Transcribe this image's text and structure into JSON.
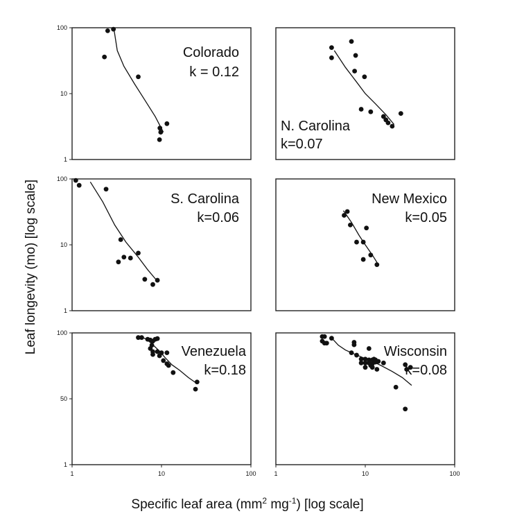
{
  "figure": {
    "ylabel": "Leaf longevity (mo) [log scale]",
    "xlabel_parts": [
      "Specific leaf area (mm",
      "2",
      " mg",
      "-1",
      ") [log scale]"
    ]
  },
  "chart_data": [
    {
      "type": "scatter",
      "title": "Colorado",
      "k_label": "k = 0.12",
      "x_scale": "log",
      "y_scale": "log",
      "xlim": [
        1,
        100
      ],
      "ylim": [
        1,
        100
      ],
      "x_ticks": [],
      "y_ticks": [
        "100",
        "10",
        "1"
      ],
      "points": [
        [
          2.5,
          90
        ],
        [
          2.9,
          95
        ],
        [
          2.3,
          36
        ],
        [
          5.5,
          18
        ],
        [
          9.6,
          3.0
        ],
        [
          9.8,
          2.6
        ],
        [
          9.5,
          2.0
        ],
        [
          11.5,
          3.5
        ]
      ],
      "fit": [
        [
          2.95,
          92
        ],
        [
          3.2,
          45
        ],
        [
          3.8,
          26
        ],
        [
          5,
          14
        ],
        [
          6.5,
          8
        ],
        [
          8.5,
          4.5
        ],
        [
          10.5,
          2.6
        ]
      ]
    },
    {
      "type": "scatter",
      "title": "N. Carolina",
      "k_label": "k=0.07",
      "x_scale": "log",
      "y_scale": "log",
      "xlim": [
        1,
        100
      ],
      "ylim": [
        1,
        100
      ],
      "x_ticks": [],
      "y_ticks": [],
      "points": [
        [
          4.2,
          50
        ],
        [
          4.2,
          35
        ],
        [
          7.0,
          62
        ],
        [
          7.8,
          38
        ],
        [
          7.6,
          22
        ],
        [
          9.8,
          18
        ],
        [
          9.0,
          5.8
        ],
        [
          11.5,
          5.3
        ],
        [
          16,
          4.5
        ],
        [
          17,
          4.0
        ],
        [
          18,
          3.6
        ],
        [
          20,
          3.2
        ],
        [
          25,
          5.0
        ]
      ],
      "fit": [
        [
          4.5,
          45
        ],
        [
          6,
          25
        ],
        [
          8,
          15
        ],
        [
          10,
          10
        ],
        [
          13,
          7
        ],
        [
          17,
          4.8
        ],
        [
          21,
          3.4
        ]
      ]
    },
    {
      "type": "scatter",
      "title": "S. Carolina",
      "k_label": "k=0.06",
      "x_scale": "log",
      "y_scale": "log",
      "xlim": [
        1,
        100
      ],
      "ylim": [
        1,
        100
      ],
      "x_ticks": [],
      "y_ticks": [
        "100",
        "10",
        "1"
      ],
      "points": [
        [
          1.1,
          95
        ],
        [
          1.2,
          80
        ],
        [
          2.4,
          70
        ],
        [
          3.5,
          12
        ],
        [
          3.3,
          5.5
        ],
        [
          3.8,
          6.5
        ],
        [
          4.5,
          6.3
        ],
        [
          5.5,
          7.5
        ],
        [
          6.5,
          3.0
        ],
        [
          8,
          2.5
        ],
        [
          9,
          2.9
        ]
      ],
      "fit": [
        [
          1.6,
          90
        ],
        [
          2.2,
          45
        ],
        [
          3,
          20
        ],
        [
          4,
          11
        ],
        [
          5.5,
          6.5
        ],
        [
          7,
          4.2
        ],
        [
          9,
          2.8
        ]
      ]
    },
    {
      "type": "scatter",
      "title": "New Mexico",
      "k_label": "k=0.05",
      "x_scale": "log",
      "y_scale": "log",
      "xlim": [
        1,
        100
      ],
      "ylim": [
        1,
        100
      ],
      "x_ticks": [],
      "y_ticks": [],
      "points": [
        [
          5.8,
          28
        ],
        [
          6.3,
          32
        ],
        [
          6.8,
          20
        ],
        [
          8.0,
          11
        ],
        [
          9.5,
          11
        ],
        [
          10.3,
          18
        ],
        [
          9.5,
          6
        ],
        [
          11.5,
          7
        ],
        [
          13.5,
          5
        ]
      ],
      "fit": [
        [
          5.7,
          33
        ],
        [
          7,
          22
        ],
        [
          8.5,
          14
        ],
        [
          10,
          10
        ],
        [
          12,
          7
        ],
        [
          14,
          5
        ]
      ]
    },
    {
      "type": "scatter",
      "title": "Venezuela",
      "k_label": "k=0.18",
      "x_scale": "log",
      "y_scale": "log",
      "xlim": [
        1,
        100
      ],
      "ylim": [
        1,
        100
      ],
      "x_ticks": [
        "1",
        "10",
        "100"
      ],
      "y_ticks": [
        "100",
        "50",
        "1"
      ],
      "points": [
        [
          5.5,
          85
        ],
        [
          6,
          85
        ],
        [
          7,
          80
        ],
        [
          7.5,
          78
        ],
        [
          8,
          75
        ],
        [
          8.5,
          80
        ],
        [
          7.8,
          65
        ],
        [
          9,
          82
        ],
        [
          7.5,
          58
        ],
        [
          8,
          52
        ],
        [
          9,
          52
        ],
        [
          10,
          50
        ],
        [
          8,
          47
        ],
        [
          9.5,
          45
        ],
        [
          11.5,
          50
        ],
        [
          10.5,
          38
        ],
        [
          11.5,
          34
        ],
        [
          12,
          32
        ],
        [
          13.5,
          25
        ],
        [
          25,
          18
        ],
        [
          24,
          14
        ]
      ],
      "fit": [
        [
          6,
          87
        ],
        [
          7,
          78
        ],
        [
          8,
          66
        ],
        [
          9.5,
          53
        ],
        [
          11,
          42
        ],
        [
          13,
          33
        ],
        [
          16,
          27
        ],
        [
          20,
          21
        ],
        [
          25,
          17
        ]
      ]
    },
    {
      "type": "scatter",
      "title": "Wisconsin",
      "k_label": "k=0.08",
      "x_scale": "log",
      "y_scale": "log",
      "xlim": [
        1,
        100
      ],
      "ylim": [
        1,
        100
      ],
      "x_ticks": [
        "1",
        "10",
        "100"
      ],
      "y_ticks": [],
      "points": [
        [
          3.3,
          88
        ],
        [
          3.5,
          88
        ],
        [
          3.3,
          75
        ],
        [
          3.5,
          70
        ],
        [
          4.2,
          83
        ],
        [
          3.7,
          70
        ],
        [
          7.5,
          72
        ],
        [
          7.5,
          66
        ],
        [
          11,
          58
        ],
        [
          7,
          50
        ],
        [
          8,
          46
        ],
        [
          9,
          40
        ],
        [
          10,
          40
        ],
        [
          11,
          39
        ],
        [
          12,
          39
        ],
        [
          12.5,
          40
        ],
        [
          13,
          39
        ],
        [
          14,
          37
        ],
        [
          9,
          35
        ],
        [
          10,
          35
        ],
        [
          11,
          35
        ],
        [
          12,
          34
        ],
        [
          13,
          36
        ],
        [
          11.5,
          32
        ],
        [
          12,
          30
        ],
        [
          10,
          30
        ],
        [
          13.5,
          28
        ],
        [
          16,
          35
        ],
        [
          28,
          33
        ],
        [
          29,
          28
        ],
        [
          32,
          30
        ],
        [
          22,
          15
        ],
        [
          28,
          7
        ]
      ],
      "fit": [
        [
          4.2,
          84
        ],
        [
          5,
          65
        ],
        [
          6,
          55
        ],
        [
          7.5,
          48
        ],
        [
          9.5,
          42
        ],
        [
          12,
          37
        ],
        [
          15,
          32
        ],
        [
          20,
          26
        ],
        [
          26,
          21
        ],
        [
          33,
          16
        ]
      ]
    }
  ]
}
